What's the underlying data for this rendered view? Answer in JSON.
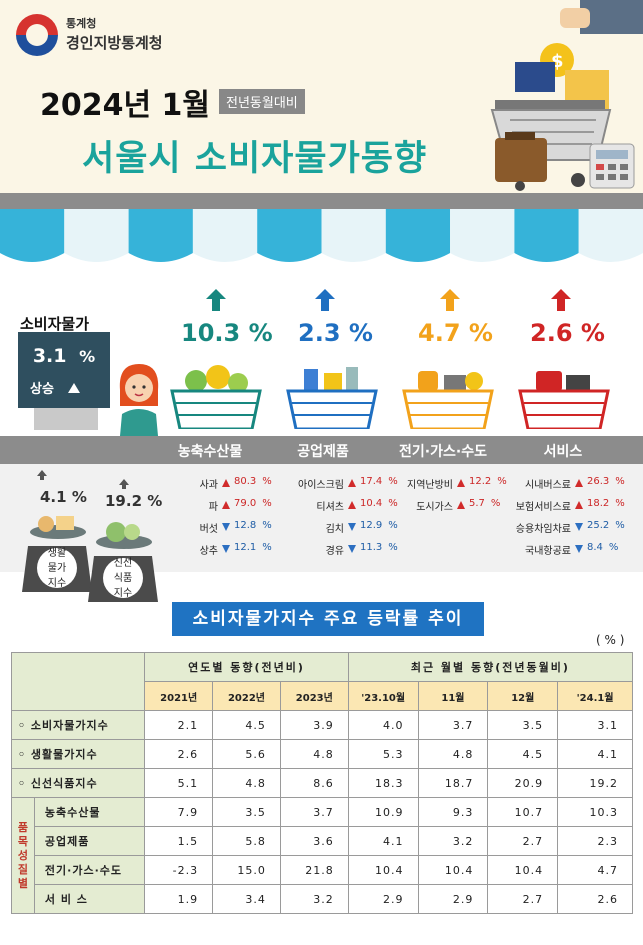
{
  "header": {
    "org_small": "통계청",
    "org_name": "경인지방통계청",
    "title_date": "2024년 1월",
    "title_badge": "전년동월대비",
    "main_title": "서울시 소비자물가동향"
  },
  "cpi": {
    "label": "소비자물가",
    "value": "3.1",
    "unit": "%",
    "change": "상승"
  },
  "categories": [
    {
      "name": "농축수산물",
      "value": "10.3",
      "unit": "%",
      "color": "#17877f",
      "arrow_color": "#17877f"
    },
    {
      "name": "공업제품",
      "value": "2.3",
      "unit": "%",
      "color": "#1f6fc1",
      "arrow_color": "#1f6fc1"
    },
    {
      "name": "전기·가스·수도",
      "value": "4.7",
      "unit": "%",
      "color": "#f2a21b",
      "arrow_color": "#f2a21b"
    },
    {
      "name": "서비스",
      "value": "2.6",
      "unit": "%",
      "color": "#d02525",
      "arrow_color": "#d02525"
    }
  ],
  "items": [
    [
      {
        "name": "사과",
        "value": "80.3",
        "unit": "%",
        "dir": "up"
      },
      {
        "name": "파",
        "value": "79.0",
        "unit": "%",
        "dir": "up"
      },
      {
        "name": "버섯",
        "value": "12.8",
        "unit": "%",
        "dir": "down"
      },
      {
        "name": "상추",
        "value": "12.1",
        "unit": "%",
        "dir": "down"
      }
    ],
    [
      {
        "name": "아이스크림",
        "value": "17.4",
        "unit": "%",
        "dir": "up"
      },
      {
        "name": "티셔츠",
        "value": "10.4",
        "unit": "%",
        "dir": "up"
      },
      {
        "name": "김치",
        "value": "12.9",
        "unit": "%",
        "dir": "down"
      },
      {
        "name": "경유",
        "value": "11.3",
        "unit": "%",
        "dir": "down"
      }
    ],
    [
      {
        "name": "지역난방비",
        "value": "12.2",
        "unit": "%",
        "dir": "up"
      },
      {
        "name": "도시가스",
        "value": "5.7",
        "unit": "%",
        "dir": "up"
      }
    ],
    [
      {
        "name": "시내버스료",
        "value": "26.3",
        "unit": "%",
        "dir": "up"
      },
      {
        "name": "보험서비스료",
        "value": "18.2",
        "unit": "%",
        "dir": "up"
      },
      {
        "name": "승용차임차료",
        "value": "25.2",
        "unit": "%",
        "dir": "down"
      },
      {
        "name": "국내항공료",
        "value": "8.4",
        "unit": "%",
        "dir": "down"
      }
    ]
  ],
  "scales": [
    {
      "value": "4.1",
      "unit": "%",
      "label_lines": [
        "생활",
        "물가",
        "지수"
      ]
    },
    {
      "value": "19.2",
      "unit": "%",
      "label_lines": [
        "신선",
        "식품",
        "지수"
      ]
    }
  ],
  "section_title": "소비자물가지수 주요 등락률 추이",
  "unit_label": "( % )",
  "table": {
    "group_yearly": "연도별 동향(전년비)",
    "group_monthly": "최근 월별 동향(전년동월비)",
    "columns": [
      "2021년",
      "2022년",
      "2023년",
      "'23.10월",
      "11월",
      "12월",
      "'24.1월"
    ],
    "category_group_label": "품목성질별",
    "rows": [
      {
        "label": "◦ 소비자물가지수",
        "values": [
          "2.1",
          "4.5",
          "3.9",
          "4.0",
          "3.7",
          "3.5",
          "3.1"
        ]
      },
      {
        "label": "◦ 생활물가지수",
        "values": [
          "2.6",
          "5.6",
          "4.8",
          "5.3",
          "4.8",
          "4.5",
          "4.1"
        ]
      },
      {
        "label": "◦ 신선식품지수",
        "values": [
          "5.1",
          "4.8",
          "8.6",
          "18.3",
          "18.7",
          "20.9",
          "19.2"
        ]
      }
    ],
    "category_rows": [
      {
        "label": "농축수산물",
        "values": [
          "7.9",
          "3.5",
          "3.7",
          "10.9",
          "9.3",
          "10.7",
          "10.3"
        ]
      },
      {
        "label": "공업제품",
        "values": [
          "1.5",
          "5.8",
          "3.6",
          "4.1",
          "3.2",
          "2.7",
          "2.3"
        ]
      },
      {
        "label": "전기·가스·수도",
        "values": [
          "-2.3",
          "15.0",
          "21.8",
          "10.4",
          "10.4",
          "10.4",
          "4.7"
        ]
      },
      {
        "label": "서 비 스",
        "values": [
          "1.9",
          "3.4",
          "3.2",
          "2.9",
          "2.9",
          "2.7",
          "2.6"
        ]
      }
    ]
  }
}
